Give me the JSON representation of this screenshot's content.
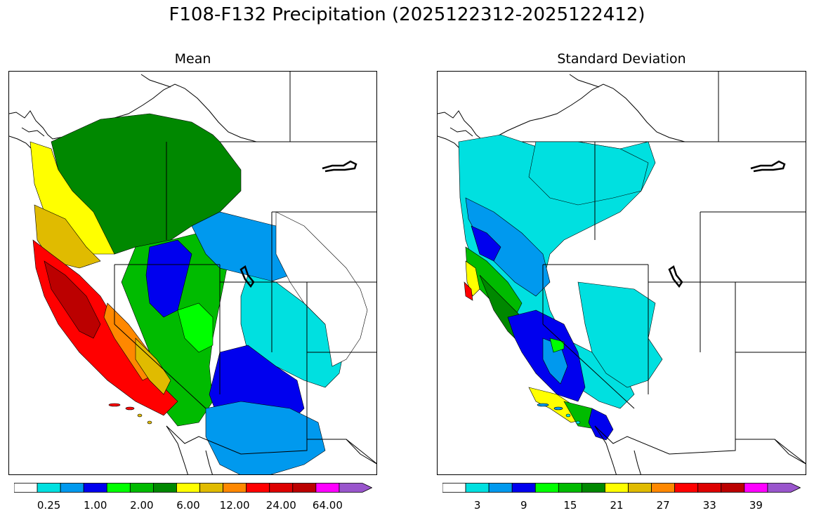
{
  "figure": {
    "title": "F108-F132 Precipitation (2025122312-2025122412)"
  },
  "panels": [
    {
      "title": "Mean",
      "colorbar": {
        "colors": [
          "#ffffff",
          "#00e0e0",
          "#0099ee",
          "#0000ee",
          "#00ff00",
          "#00bb00",
          "#008800",
          "#ffff00",
          "#e0bb00",
          "#ff8800",
          "#ff0000",
          "#dd0000",
          "#bb0000",
          "#ff00ff",
          "#9955cc"
        ],
        "tick_labels": [
          {
            "label": "0.25",
            "bin": 1
          },
          {
            "label": "1.00",
            "bin": 3
          },
          {
            "label": "2.00",
            "bin": 5
          },
          {
            "label": "6.00",
            "bin": 7
          },
          {
            "label": "12.00",
            "bin": 9
          },
          {
            "label": "24.00",
            "bin": 11
          },
          {
            "label": "64.00",
            "bin": 13
          }
        ]
      }
    },
    {
      "title": "Standard Deviation",
      "colorbar": {
        "colors": [
          "#ffffff",
          "#00e0e0",
          "#0099ee",
          "#0000ee",
          "#00ff00",
          "#00bb00",
          "#008800",
          "#ffff00",
          "#e0bb00",
          "#ff8800",
          "#ff0000",
          "#dd0000",
          "#bb0000",
          "#ff00ff",
          "#9955cc"
        ],
        "tick_labels": [
          {
            "label": "3",
            "bin": 1
          },
          {
            "label": "9",
            "bin": 3
          },
          {
            "label": "15",
            "bin": 5
          },
          {
            "label": "21",
            "bin": 7
          },
          {
            "label": "27",
            "bin": 9
          },
          {
            "label": "33",
            "bin": 11
          },
          {
            "label": "39",
            "bin": 13
          }
        ]
      }
    }
  ]
}
